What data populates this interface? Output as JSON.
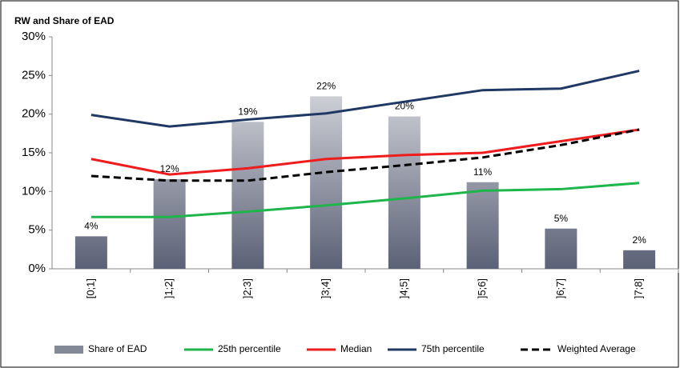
{
  "chart_data": {
    "type": "bar",
    "title": "RW and Share of EAD",
    "categories": [
      "[0;1]",
      "]1;2]",
      "]2;3]",
      "]3;4]",
      "]4;5]",
      "]5;6]",
      "]6;7]",
      "]7;8]"
    ],
    "series": [
      {
        "name": "Share of EAD",
        "type": "bar",
        "color": "#5b6176",
        "values": [
          4.2,
          11.6,
          19,
          22.3,
          19.7,
          11.2,
          5.2,
          2.4
        ],
        "value_labels": [
          "4%",
          "12%",
          "19%",
          "22%",
          "20%",
          "11%",
          "5%",
          "2%"
        ]
      },
      {
        "name": "25th percentile",
        "type": "line",
        "color": "#1eb54a",
        "values": [
          6.7,
          6.7,
          7.4,
          8.2,
          9.1,
          10.1,
          10.3,
          11.1
        ]
      },
      {
        "name": "Median",
        "type": "line",
        "color": "#ee1c1c",
        "values": [
          14.2,
          12.2,
          13.0,
          14.2,
          14.7,
          15.0,
          16.5,
          18.0
        ]
      },
      {
        "name": "75th percentile",
        "type": "line",
        "color": "#1f3864",
        "values": [
          19.9,
          18.4,
          19.3,
          20.1,
          21.6,
          23.1,
          23.3,
          25.6
        ]
      },
      {
        "name": "Weighted Average",
        "type": "line",
        "color": "#000000",
        "dashed": true,
        "values": [
          12.0,
          11.4,
          11.4,
          12.5,
          13.4,
          14.4,
          16.0,
          18.0
        ]
      }
    ],
    "ylim": [
      0,
      30
    ],
    "yticks": [
      {
        "value": 0,
        "label": "0%"
      },
      {
        "value": 5,
        "label": "5%"
      },
      {
        "value": 10,
        "label": "10%"
      },
      {
        "value": 15,
        "label": "15%"
      },
      {
        "value": 20,
        "label": "20%"
      },
      {
        "value": 25,
        "label": "25%"
      },
      {
        "value": 30,
        "label": "30%"
      }
    ],
    "grid": false,
    "legend": "bottom"
  }
}
